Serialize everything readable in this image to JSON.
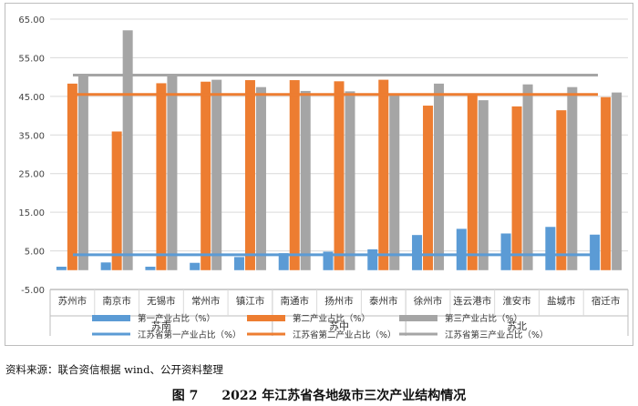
{
  "chart_data": {
    "type": "bar",
    "categories": [
      "苏州市",
      "南京市",
      "无锡市",
      "常州市",
      "镇江市",
      "南通市",
      "扬州市",
      "泰州市",
      "徐州市",
      "连云港市",
      "淮安市",
      "盐城市",
      "宿迁市"
    ],
    "groups": [
      {
        "label": "苏南",
        "categories": [
          "苏州市",
          "南京市",
          "无锡市",
          "常州市",
          "镇江市"
        ]
      },
      {
        "label": "苏中",
        "categories": [
          "南通市",
          "扬州市",
          "泰州市"
        ]
      },
      {
        "label": "苏北",
        "categories": [
          "徐州市",
          "连云港市",
          "淮安市",
          "盐城市",
          "宿迁市"
        ]
      }
    ],
    "series": [
      {
        "name": "第一产业占比（%）",
        "color": "#5b9bd5",
        "values": [
          0.9,
          2.0,
          0.9,
          1.9,
          3.4,
          4.4,
          4.8,
          5.4,
          9.1,
          10.7,
          9.5,
          11.2,
          9.2
        ]
      },
      {
        "name": "第二产业占比（%）",
        "color": "#ed7d31",
        "values": [
          48.3,
          35.9,
          48.4,
          48.8,
          49.2,
          49.2,
          48.9,
          49.3,
          42.6,
          45.3,
          42.4,
          41.4,
          44.8
        ]
      },
      {
        "name": "第三产业占比（%）",
        "color": "#a5a5a5",
        "values": [
          50.8,
          62.1,
          50.7,
          49.3,
          47.4,
          46.4,
          46.3,
          45.3,
          48.3,
          44.0,
          48.1,
          47.4,
          46.0
        ]
      }
    ],
    "reference_lines": [
      {
        "name": "江苏省第一产业占比（%）",
        "color": "#5b9bd5",
        "value": 4.0
      },
      {
        "name": "江苏省第二产业占比（%）",
        "color": "#ed7d31",
        "value": 45.5
      },
      {
        "name": "江苏省第三产业占比（%）",
        "color": "#a5a5a5",
        "value": 50.5
      }
    ],
    "ylim": [
      -5,
      65
    ],
    "yticks": [
      "-5.00",
      "5.00",
      "15.00",
      "25.00",
      "35.00",
      "45.00",
      "55.00",
      "65.00"
    ],
    "grid": true,
    "legend_position": "bottom"
  },
  "source": "资料来源：联合资信根据 wind、公开资料整理",
  "caption": {
    "figure_no": "图 7",
    "title": "2022 年江苏省各地级市三次产业结构情况"
  }
}
